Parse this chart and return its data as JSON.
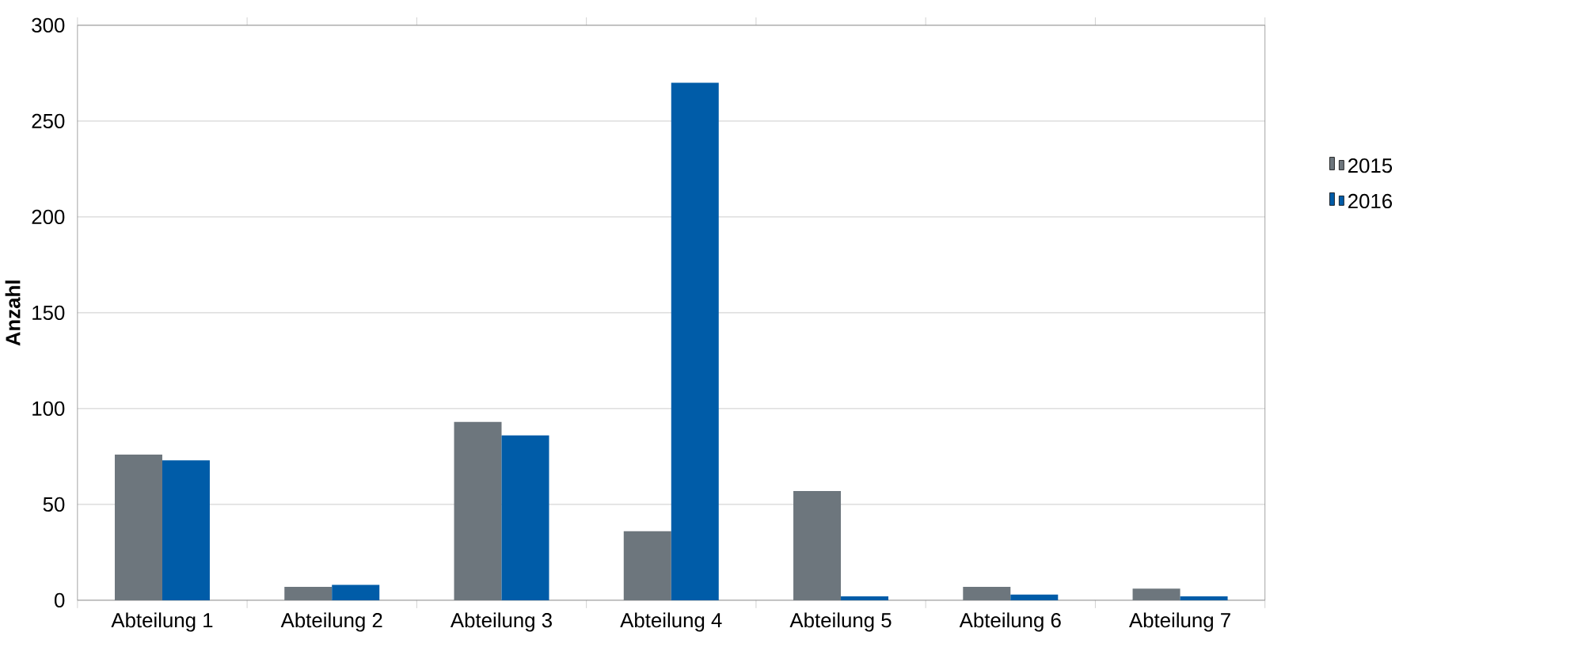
{
  "chart_data": {
    "type": "bar",
    "ylabel": "Anzahl",
    "categories": [
      "Abteilung 1",
      "Abteilung 2",
      "Abteilung 3",
      "Abteilung 4",
      "Abteilung 5",
      "Abteilung 6",
      "Abteilung 7"
    ],
    "series": [
      {
        "name": "2015",
        "color": "#6d767d",
        "values": [
          76,
          7,
          93,
          36,
          57,
          7,
          6
        ]
      },
      {
        "name": "2016",
        "color": "#005ca8",
        "values": [
          73,
          8,
          86,
          270,
          2,
          3,
          2
        ]
      }
    ],
    "ylim": [
      0,
      300
    ],
    "yticks": [
      0,
      50,
      100,
      150,
      200,
      250,
      300
    ],
    "grid": "y",
    "legend": "right"
  }
}
